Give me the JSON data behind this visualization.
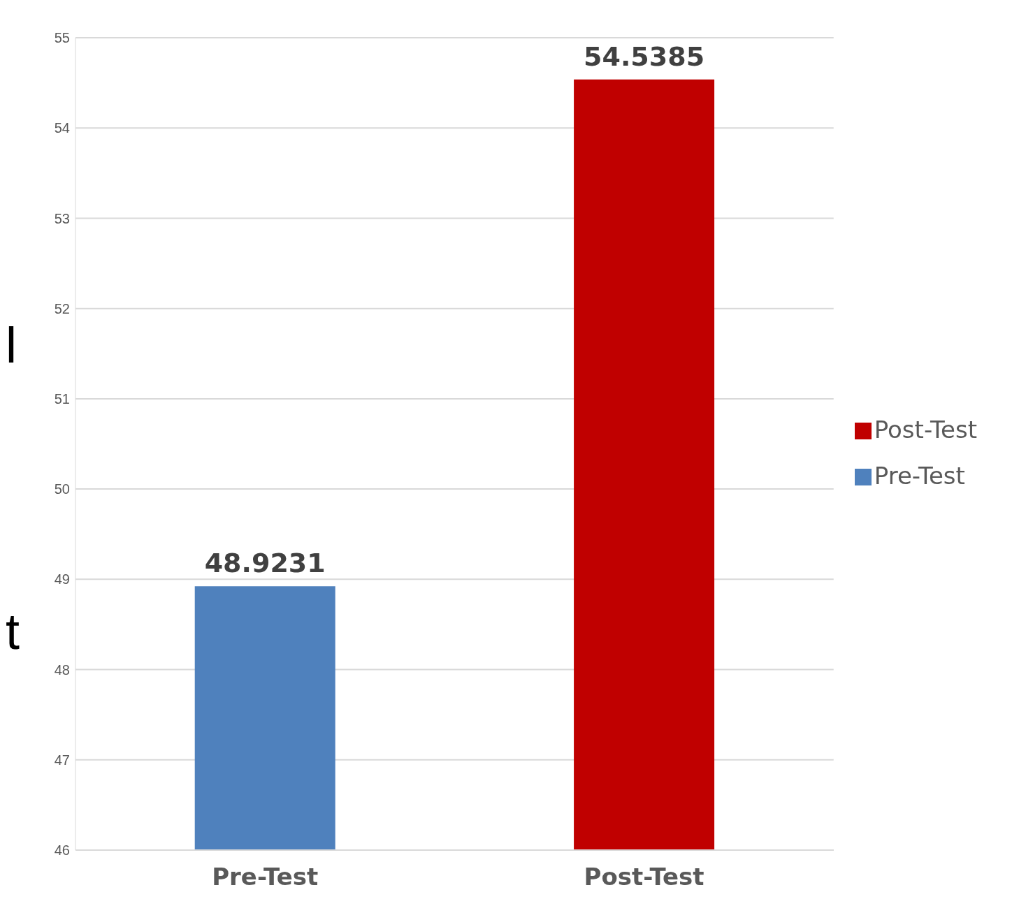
{
  "chart_data": {
    "type": "bar",
    "categories": [
      "Pre-Test",
      "Post-Test"
    ],
    "series": [
      {
        "name": "Pre-Test",
        "color": "#4f81bd",
        "values": [
          48.9231,
          null
        ]
      },
      {
        "name": "Post-Test",
        "color": "#c00000",
        "values": [
          null,
          54.5385
        ]
      }
    ],
    "stacked": true,
    "ylim": [
      46,
      55
    ],
    "yticks": [
      46,
      47,
      48,
      49,
      50,
      51,
      52,
      53,
      54,
      55
    ],
    "grid": "y",
    "legend": "right",
    "data_labels": true,
    "annotations": [
      "l",
      "t"
    ]
  }
}
